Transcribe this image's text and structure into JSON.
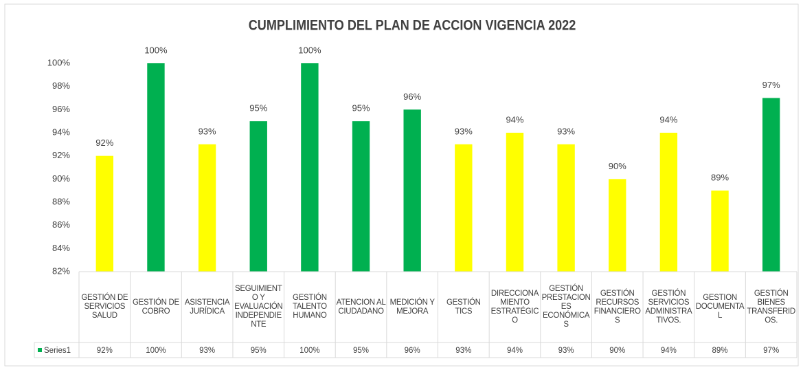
{
  "chart_data": {
    "type": "bar",
    "title": "CUMPLIMIENTO DEL PLAN DE ACCION VIGENCIA 2022",
    "categories": [
      "GESTIÓN DE SERVICIOS SALUD",
      "GESTIÓN DE COBRO",
      "ASISTENCIA JURÍDICA",
      "SEGUIMIENTO Y EVALUACIÓN INDEPENDIENTE",
      "GESTIÓN TALENTO HUMANO",
      "ATENCION AL CIUDADANO",
      "MEDICIÓN Y MEJORA",
      "GESTIÓN TICS",
      "DIRECCIONAMIENTO ESTRATÉGICO",
      "GESTIÓN PRESTACIONES ECONÓMICAS",
      "GESTIÓN RECURSOS FINANCIEROS",
      "GESTIÓN SERVICIOS ADMINISTRATIVOS.",
      "GESTION DOCUMENTAL",
      "GESTIÓN BIENES TRANSFERIDOS."
    ],
    "series": [
      {
        "name": "Series1",
        "color": "#00b050",
        "values": [
          92,
          100,
          93,
          95,
          100,
          95,
          96,
          93,
          94,
          93,
          90,
          94,
          89,
          97
        ],
        "value_labels": [
          "92%",
          "100%",
          "93%",
          "95%",
          "100%",
          "95%",
          "96%",
          "93%",
          "94%",
          "93%",
          "90%",
          "94%",
          "89%",
          "97%"
        ],
        "colors": [
          "#ffff00",
          "#00b050",
          "#ffff00",
          "#00b050",
          "#00b050",
          "#00b050",
          "#00b050",
          "#ffff00",
          "#ffff00",
          "#ffff00",
          "#ffff00",
          "#ffff00",
          "#ffff00",
          "#00b050"
        ]
      }
    ],
    "ylim": [
      82,
      100
    ],
    "yticks": [
      {
        "value": 82,
        "label": "82%"
      },
      {
        "value": 84,
        "label": "84%"
      },
      {
        "value": 86,
        "label": "86%"
      },
      {
        "value": 88,
        "label": "88%"
      },
      {
        "value": 90,
        "label": "90%"
      },
      {
        "value": 92,
        "label": "92%"
      },
      {
        "value": 94,
        "label": "94%"
      },
      {
        "value": 96,
        "label": "96%"
      },
      {
        "value": 98,
        "label": "98%"
      },
      {
        "value": 100,
        "label": "100%"
      }
    ],
    "grid": false,
    "data_table": true
  }
}
